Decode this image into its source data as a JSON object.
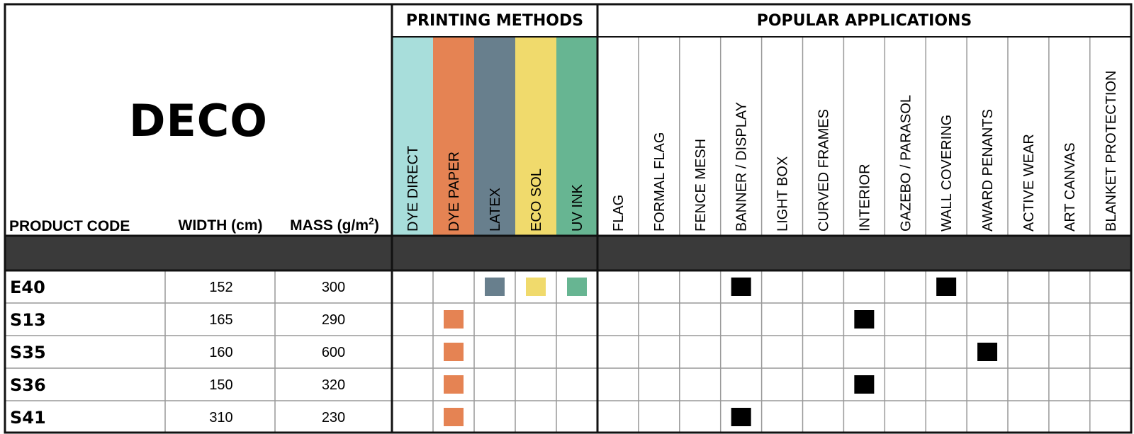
{
  "title": "DECO",
  "groups": {
    "printing": "PRINTING METHODS",
    "applications": "POPULAR APPLICATIONS"
  },
  "headers": {
    "code": "PRODUCT CODE",
    "width": "WIDTH (cm)",
    "mass": "MASS (g/m",
    "mass_sup": "2",
    "mass_close": ")"
  },
  "printing_methods": [
    {
      "label": "DYE DIRECT",
      "color": "#a8dedb"
    },
    {
      "label": "DYE PAPER",
      "color": "#e58353"
    },
    {
      "label": "LATEX",
      "color": "#687f8d"
    },
    {
      "label": "ECO SOL",
      "color": "#f0da6c"
    },
    {
      "label": "UV INK",
      "color": "#67b592"
    }
  ],
  "applications": [
    "FLAG",
    "FORMAL FLAG",
    "FENCE MESH",
    "BANNER / DISPLAY",
    "LIGHT BOX",
    "CURVED FRAMES",
    "INTERIOR",
    "GAZEBO / PARASOL",
    "WALL COVERING",
    "AWARD PENANTS",
    "ACTIVE WEAR",
    "ART CANVAS",
    "BLANKET PROTECTION"
  ],
  "rows": [
    {
      "code": "E40",
      "width": "152",
      "mass": "300",
      "methods": [
        "LATEX",
        "ECO SOL",
        "UV INK"
      ],
      "apps": [
        "BANNER / DISPLAY",
        "WALL COVERING"
      ]
    },
    {
      "code": "S13",
      "width": "165",
      "mass": "290",
      "methods": [
        "DYE PAPER"
      ],
      "apps": [
        "INTERIOR"
      ]
    },
    {
      "code": "S35",
      "width": "160",
      "mass": "600",
      "methods": [
        "DYE PAPER"
      ],
      "apps": [
        "AWARD PENANTS"
      ]
    },
    {
      "code": "S36",
      "width": "150",
      "mass": "320",
      "methods": [
        "DYE PAPER"
      ],
      "apps": [
        "INTERIOR"
      ]
    },
    {
      "code": "S41",
      "width": "310",
      "mass": "230",
      "methods": [
        "DYE PAPER"
      ],
      "apps": [
        "BANNER / DISPLAY"
      ]
    }
  ],
  "colors": {
    "band": "#3a3a3a",
    "app_marker": "#000000",
    "grid": "#999999",
    "border": "#111111"
  }
}
